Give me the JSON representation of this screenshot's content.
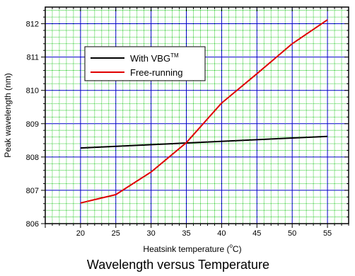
{
  "chart_data": {
    "type": "line",
    "title": "Wavelength versus Temperature",
    "xlabel": "Heatsink temperature (",
    "xlabel_sup": "o",
    "xlabel_tail": "C)",
    "ylabel": "Peak wavelength (nm)",
    "xlim": [
      15,
      58
    ],
    "ylim": [
      806,
      812.5
    ],
    "x_ticks": [
      20,
      25,
      30,
      35,
      40,
      45,
      50,
      55
    ],
    "y_ticks": [
      806,
      807,
      808,
      809,
      810,
      811,
      812
    ],
    "grid": true,
    "legend": "upper-left",
    "series": [
      {
        "name": "With VBG",
        "name_sup": "TM",
        "color": "#000000",
        "x": [
          20,
          55
        ],
        "y": [
          808.27,
          808.62
        ]
      },
      {
        "name": "Free-running",
        "color": "#e00000",
        "x": [
          20,
          25,
          30,
          35,
          40,
          45,
          50,
          55
        ],
        "y": [
          806.62,
          806.87,
          807.55,
          808.43,
          809.62,
          810.5,
          811.4,
          812.12
        ]
      }
    ]
  }
}
